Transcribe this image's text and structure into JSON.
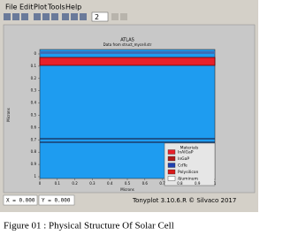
{
  "menu": [
    "File",
    "Edit",
    "Plot",
    "Tools",
    "Help"
  ],
  "toolbar": {
    "zoom_value": "2"
  },
  "plot": {
    "title": "ATLAS",
    "subtitle": "Data from struct_mycell.str",
    "x_axis_label": "Microns",
    "y_axis_label": "Microns",
    "x_ticks": [
      "0",
      "0.1",
      "0.2",
      "0.3",
      "0.4",
      "0.5",
      "0.6",
      "0.7",
      "0.8",
      "0.9",
      "1"
    ],
    "y_ticks": [
      "0",
      "0.1",
      "0.2",
      "0.3",
      "0.4",
      "0.5",
      "0.6",
      "0.7",
      "0.8",
      "0.9",
      "1"
    ],
    "legend": {
      "title": "Materials",
      "items": [
        {
          "label": "InAlGaP",
          "color": "#e8202a"
        },
        {
          "label": "InGaP",
          "color": "#b01818"
        },
        {
          "label": "CdTe",
          "color": "#1f3fb0"
        },
        {
          "label": "Polysilicon",
          "color": "#d81818"
        },
        {
          "label": "Aluminum",
          "color": "#ffffff"
        }
      ]
    }
  },
  "status": {
    "x": "X = 0.000",
    "y": "Y = 0.000",
    "version": "Tonyplot 3.10.6.R © Silvaco 2017"
  },
  "caption": "Figure 01 : Physical Structure Of Solar Cell"
}
